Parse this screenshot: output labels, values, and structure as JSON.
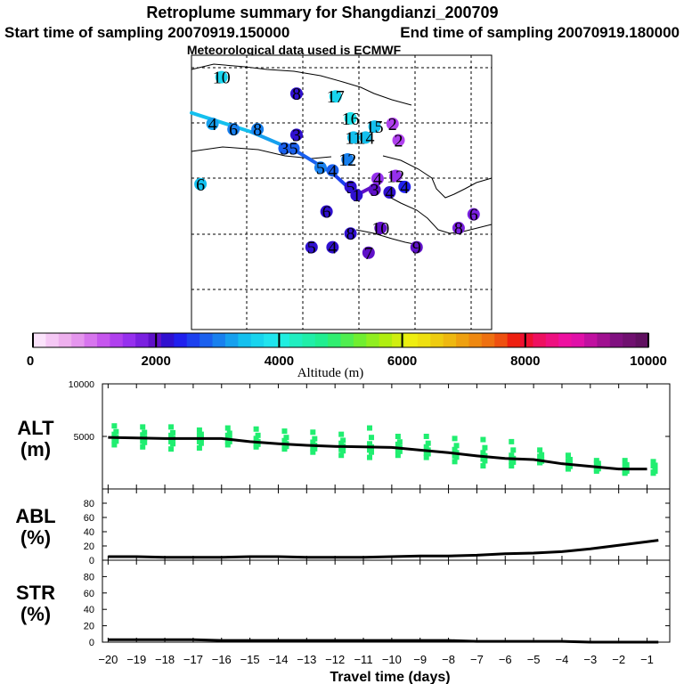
{
  "header": {
    "title": "Retroplume summary for Shangdianzi_200709",
    "start_label": "Start time of sampling 20070919.150000",
    "end_label": "End time of sampling 20070919.180000",
    "met_label": "Meteorological data used is ECMWF"
  },
  "colorbar": {
    "label": "Altitude (m)",
    "tick_labels": [
      "0",
      "2000",
      "4000",
      "6000",
      "8000",
      "10000"
    ],
    "colors": [
      "#fbe3fb",
      "#f5c8f5",
      "#eeb0ee",
      "#e596ee",
      "#d775ee",
      "#c656ee",
      "#b040ee",
      "#9630ee",
      "#7a20e0",
      "#5f10c8",
      "#3010d0",
      "#2020ee",
      "#1c40ee",
      "#1a60ee",
      "#1880ee",
      "#16a0ee",
      "#14c0ee",
      "#18d4ee",
      "#20e4ee",
      "#20eee0",
      "#20eec0",
      "#20eea8",
      "#20ee90",
      "#30ee70",
      "#50ee50",
      "#70ee30",
      "#90ee20",
      "#b0ee10",
      "#d0ee10",
      "#eeee10",
      "#eee010",
      "#eecc10",
      "#eeb810",
      "#eea010",
      "#ee8810",
      "#ee7010",
      "#ee5010",
      "#ee2010",
      "#ee1030",
      "#ee1060",
      "#ee1080",
      "#ee10a0",
      "#e010a8",
      "#c010a0",
      "#a01090",
      "#801080",
      "#701070",
      "#601060"
    ]
  },
  "map": {
    "trajectory_labels": [
      {
        "text": "10",
        "lon": 0.1,
        "lat": 0.92,
        "alt": 3600
      },
      {
        "text": "8",
        "lon": 0.35,
        "lat": 0.86,
        "alt": 2200
      },
      {
        "text": "17",
        "lon": 0.48,
        "lat": 0.85,
        "alt": 3700
      },
      {
        "text": "16",
        "lon": 0.53,
        "lat": 0.77,
        "alt": 3800
      },
      {
        "text": "15",
        "lon": 0.61,
        "lat": 0.74,
        "alt": 3400
      },
      {
        "text": "2",
        "lon": 0.67,
        "lat": 0.75,
        "alt": 1400
      },
      {
        "text": "14",
        "lon": 0.58,
        "lat": 0.7,
        "alt": 3500
      },
      {
        "text": "11",
        "lon": 0.54,
        "lat": 0.7,
        "alt": 3500
      },
      {
        "text": "2",
        "lon": 0.69,
        "lat": 0.69,
        "alt": 1300
      },
      {
        "text": "4",
        "lon": 0.07,
        "lat": 0.75,
        "alt": 3200
      },
      {
        "text": "6",
        "lon": 0.14,
        "lat": 0.73,
        "alt": 3100
      },
      {
        "text": "8",
        "lon": 0.22,
        "lat": 0.73,
        "alt": 3000
      },
      {
        "text": "3",
        "lon": 0.35,
        "lat": 0.71,
        "alt": 2200
      },
      {
        "text": "6",
        "lon": 0.03,
        "lat": 0.53,
        "alt": 3500
      },
      {
        "text": "3",
        "lon": 0.31,
        "lat": 0.66,
        "alt": 2800
      },
      {
        "text": "5",
        "lon": 0.34,
        "lat": 0.66,
        "alt": 2900
      },
      {
        "text": "12",
        "lon": 0.52,
        "lat": 0.62,
        "alt": 3000
      },
      {
        "text": "5",
        "lon": 0.43,
        "lat": 0.59,
        "alt": 3100
      },
      {
        "text": "4",
        "lon": 0.47,
        "lat": 0.58,
        "alt": 2800
      },
      {
        "text": "4",
        "lon": 0.62,
        "lat": 0.55,
        "alt": 1600
      },
      {
        "text": "12",
        "lon": 0.68,
        "lat": 0.56,
        "alt": 1500
      },
      {
        "text": "5",
        "lon": 0.53,
        "lat": 0.52,
        "alt": 2100
      },
      {
        "text": "1",
        "lon": 0.55,
        "lat": 0.49,
        "alt": 2200
      },
      {
        "text": "3",
        "lon": 0.61,
        "lat": 0.51,
        "alt": 2000
      },
      {
        "text": "4",
        "lon": 0.66,
        "lat": 0.5,
        "alt": 2100
      },
      {
        "text": "4",
        "lon": 0.71,
        "lat": 0.52,
        "alt": 2300
      },
      {
        "text": "6",
        "lon": 0.45,
        "lat": 0.43,
        "alt": 2200
      },
      {
        "text": "10",
        "lon": 0.63,
        "lat": 0.37,
        "alt": 2000
      },
      {
        "text": "8",
        "lon": 0.53,
        "lat": 0.35,
        "alt": 2100
      },
      {
        "text": "5",
        "lon": 0.4,
        "lat": 0.3,
        "alt": 2100
      },
      {
        "text": "4",
        "lon": 0.47,
        "lat": 0.3,
        "alt": 2200
      },
      {
        "text": "7",
        "lon": 0.59,
        "lat": 0.28,
        "alt": 1900
      },
      {
        "text": "9",
        "lon": 0.75,
        "lat": 0.3,
        "alt": 2000
      },
      {
        "text": "8",
        "lon": 0.89,
        "lat": 0.37,
        "alt": 1800
      },
      {
        "text": "6",
        "lon": 0.94,
        "lat": 0.42,
        "alt": 1800
      }
    ],
    "centroid_path": [
      {
        "lon": 0.0,
        "lat": 0.79,
        "alt": 3400
      },
      {
        "lon": 0.2,
        "lat": 0.72,
        "alt": 3200
      },
      {
        "lon": 0.35,
        "lat": 0.65,
        "alt": 2800
      },
      {
        "lon": 0.47,
        "lat": 0.57,
        "alt": 2500
      },
      {
        "lon": 0.55,
        "lat": 0.49,
        "alt": 2000
      },
      {
        "lon": 0.62,
        "lat": 0.53,
        "alt": 1600
      }
    ]
  },
  "chart_data": [
    {
      "type": "scatter",
      "panel": "ALT",
      "ylabel": "ALT (m)",
      "ylim": [
        0,
        10000
      ],
      "yticks": [
        5000,
        10000
      ],
      "x": [
        -20,
        -19,
        -18,
        -17,
        -16,
        -15,
        -14,
        -13,
        -12,
        -11,
        -10,
        -9,
        -8,
        -7,
        -6,
        -5,
        -4,
        -3,
        -2,
        -1
      ],
      "median_line": [
        4900,
        4850,
        4800,
        4800,
        4800,
        4500,
        4300,
        4150,
        4050,
        4000,
        3950,
        3700,
        3450,
        3150,
        2900,
        2800,
        2400,
        2150,
        1900,
        1900
      ],
      "spread_low": [
        4200,
        4000,
        3800,
        3900,
        4200,
        4000,
        3800,
        3500,
        3200,
        3000,
        3200,
        3000,
        2600,
        2200,
        2200,
        2500,
        1900,
        1700,
        1500,
        1500
      ],
      "spread_high": [
        6000,
        5900,
        5900,
        5600,
        5800,
        5700,
        5500,
        5400,
        5200,
        5800,
        5000,
        5000,
        4800,
        4700,
        4500,
        3700,
        3200,
        2700,
        2700,
        2600
      ]
    },
    {
      "type": "line",
      "panel": "ABL",
      "ylabel": "ABL (%)",
      "ylim": [
        0,
        100
      ],
      "yticks": [
        0,
        20,
        40,
        60,
        80
      ],
      "x": [
        -20,
        -19,
        -18,
        -17,
        -16,
        -15,
        -14,
        -13,
        -12,
        -11,
        -10,
        -9,
        -8,
        -7,
        -6,
        -5,
        -4,
        -3,
        -2,
        -1,
        -0.6
      ],
      "values": [
        5,
        5,
        4,
        4,
        4,
        5,
        5,
        4,
        4,
        4,
        5,
        6,
        6,
        7,
        9,
        10,
        12,
        16,
        21,
        26,
        28
      ]
    },
    {
      "type": "line",
      "panel": "STR",
      "ylabel": "STR (%)",
      "ylim": [
        0,
        100
      ],
      "yticks": [
        0,
        20,
        40,
        60,
        80
      ],
      "x": [
        -20,
        -19,
        -18,
        -17,
        -16,
        -15,
        -14,
        -13,
        -12,
        -11,
        -10,
        -9,
        -8,
        -7,
        -6,
        -5,
        -4,
        -3,
        -2,
        -1,
        -0.6
      ],
      "values": [
        3,
        3,
        3,
        3,
        2,
        2,
        2,
        2,
        2,
        2,
        2,
        2,
        2,
        1,
        1,
        1,
        1,
        0,
        0,
        0,
        0
      ],
      "xlabel": "Travel time (days)",
      "xticks": [
        -20,
        -19,
        -18,
        -17,
        -16,
        -15,
        -14,
        -13,
        -12,
        -11,
        -10,
        -9,
        -8,
        -7,
        -6,
        -5,
        -4,
        -3,
        -2,
        -1
      ]
    }
  ]
}
